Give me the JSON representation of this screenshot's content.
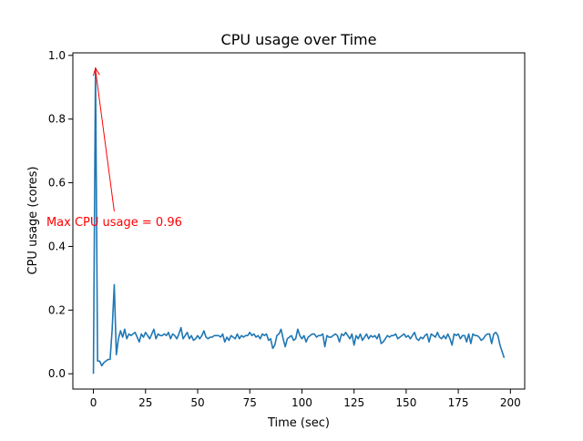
{
  "chart_data": {
    "type": "line",
    "title": "CPU usage over Time",
    "xlabel": "Time (sec)",
    "ylabel": "CPU usage (cores)",
    "xlim": [
      -9.85,
      206.85
    ],
    "ylim": [
      -0.048,
      1.008
    ],
    "grid": false,
    "legend": "none",
    "x_ticks": [
      0,
      25,
      50,
      75,
      100,
      125,
      150,
      175,
      200
    ],
    "y_ticks": [
      0.0,
      0.2,
      0.4,
      0.6,
      0.8,
      1.0
    ],
    "x_tick_labels": [
      "0",
      "25",
      "50",
      "75",
      "100",
      "125",
      "150",
      "175",
      "200"
    ],
    "y_tick_labels": [
      "0.0",
      "0.2",
      "0.4",
      "0.6",
      "0.8",
      "1.0"
    ],
    "series": [
      {
        "color": "#1f77b4",
        "x_start": 0,
        "x_step": 1,
        "values": [
          0.0,
          0.96,
          0.04,
          0.04,
          0.025,
          0.035,
          0.04,
          0.045,
          0.045,
          0.14,
          0.28,
          0.06,
          0.11,
          0.135,
          0.115,
          0.14,
          0.11,
          0.125,
          0.12,
          0.125,
          0.13,
          0.115,
          0.1,
          0.125,
          0.115,
          0.13,
          0.12,
          0.11,
          0.125,
          0.14,
          0.11,
          0.125,
          0.12,
          0.12,
          0.125,
          0.12,
          0.13,
          0.11,
          0.125,
          0.12,
          0.11,
          0.125,
          0.145,
          0.11,
          0.12,
          0.13,
          0.11,
          0.12,
          0.105,
          0.11,
          0.12,
          0.11,
          0.12,
          0.135,
          0.115,
          0.11,
          0.115,
          0.115,
          0.12,
          0.12,
          0.12,
          0.115,
          0.125,
          0.1,
          0.115,
          0.105,
          0.12,
          0.115,
          0.11,
          0.125,
          0.11,
          0.12,
          0.115,
          0.12,
          0.12,
          0.13,
          0.12,
          0.125,
          0.115,
          0.12,
          0.11,
          0.125,
          0.12,
          0.125,
          0.105,
          0.11,
          0.08,
          0.09,
          0.12,
          0.125,
          0.14,
          0.11,
          0.085,
          0.11,
          0.115,
          0.12,
          0.105,
          0.11,
          0.14,
          0.12,
          0.11,
          0.12,
          0.1,
          0.115,
          0.12,
          0.125,
          0.125,
          0.115,
          0.12,
          0.12,
          0.125,
          0.085,
          0.12,
          0.115,
          0.115,
          0.12,
          0.125,
          0.12,
          0.1,
          0.125,
          0.12,
          0.13,
          0.12,
          0.11,
          0.125,
          0.09,
          0.12,
          0.11,
          0.125,
          0.105,
          0.115,
          0.125,
          0.11,
          0.12,
          0.115,
          0.12,
          0.11,
          0.125,
          0.095,
          0.1,
          0.11,
          0.12,
          0.115,
          0.12,
          0.12,
          0.125,
          0.11,
          0.115,
          0.12,
          0.125,
          0.115,
          0.12,
          0.11,
          0.12,
          0.13,
          0.11,
          0.105,
          0.115,
          0.11,
          0.12,
          0.125,
          0.1,
          0.125,
          0.12,
          0.115,
          0.13,
          0.115,
          0.11,
          0.12,
          0.11,
          0.125,
          0.11,
          0.09,
          0.125,
          0.12,
          0.125,
          0.11,
          0.12,
          0.12,
          0.1,
          0.125,
          0.095,
          0.125,
          0.12,
          0.12,
          0.115,
          0.105,
          0.11,
          0.12,
          0.125,
          0.125,
          0.095,
          0.125,
          0.13,
          0.12,
          0.09,
          0.07,
          0.05
        ]
      }
    ],
    "annotations": [
      {
        "text": "Max CPU usage = 0.96",
        "color": "#ff0000",
        "point": [
          1,
          0.96
        ],
        "text_anchor": [
          10,
          0.51
        ]
      }
    ]
  }
}
